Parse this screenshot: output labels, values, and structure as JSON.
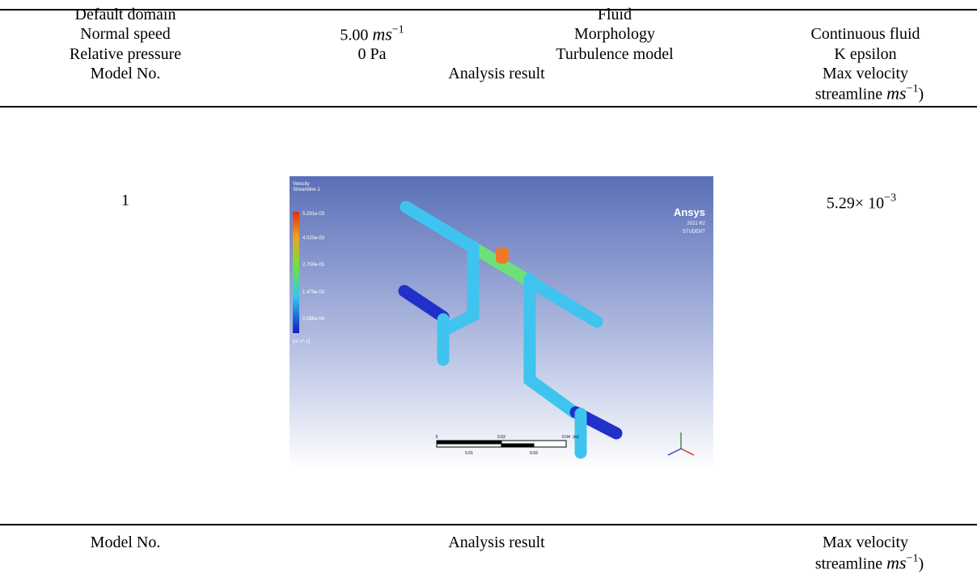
{
  "settings": {
    "domain_label": "Default domain",
    "domain_value": "Fluid",
    "speed_label": "Normal speed",
    "speed_value": {
      "number": "5.00",
      "unit": "ms",
      "exponent": "−1"
    },
    "morphology_label": "Morphology",
    "morphology_value": "Continuous fluid",
    "pressure_label": "Relative pressure",
    "pressure_value": "0 Pa",
    "turbulence_label": "Turbulence model",
    "turbulence_value": "K epsilon"
  },
  "table": {
    "columns": {
      "model": "Model No.",
      "result": "Analysis result",
      "velocity": {
        "line1": "Max velocity",
        "line2": "streamline",
        "unit": "ms",
        "exponent": "−1",
        "close": ")"
      }
    },
    "rows": [
      {
        "model": "1",
        "max_velocity": {
          "mantissa": "5.29× 10",
          "exponent": "−3"
        }
      }
    ]
  },
  "image": {
    "legend_title": "Velocity",
    "legend_subtitle": "Streamline 1",
    "legend_ticks": [
      "5.291e-03",
      "4.020e-03",
      "2.750e-03",
      "1.479e-03",
      "2.086e-04"
    ],
    "legend_unit": "[m s^-1]",
    "brand": "Ansys",
    "version": "2021 R2",
    "edition": "STUDENT",
    "scale_labels": [
      "0",
      "0.02",
      "0.04",
      "(m)"
    ],
    "scale_sub_labels": [
      "0.01",
      "0.03"
    ]
  }
}
